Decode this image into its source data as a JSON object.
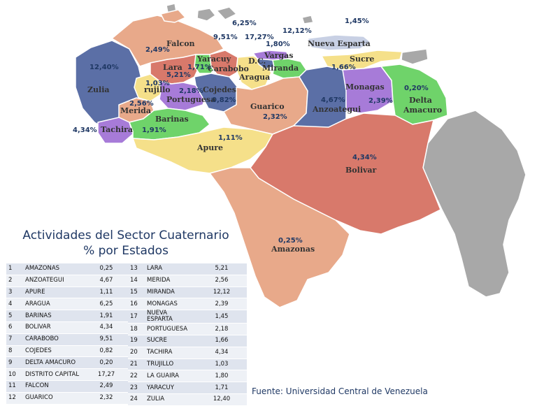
{
  "title_line1": "Actividades del Sector Cuaternario",
  "title_line2": "% por Estados",
  "source": "Fuente: Universidad Central de Venezuela",
  "map": {
    "labels": {
      "zulia": "Zulia",
      "falcon": "Falcon",
      "lara": "Lara",
      "yaracuy": "Yaracuy",
      "carabobo": "Carabobo",
      "dc": "D.C.",
      "vargas": "Vargas",
      "miranda": "Miranda",
      "aragua": "Aragua",
      "nueva_esparta": "Nueva Esparta",
      "sucre": "Sucre",
      "trujillo": "rujillo",
      "portuguesa": "Portuguesa",
      "cojedes": "Cojedes",
      "merida": "Merida",
      "tachira": "Tachira",
      "barinas": "Barinas",
      "apure": "Apure",
      "guarico": "Guarico",
      "anzoategui": "Anzoategui",
      "monagas": "Monagas",
      "delta_amacuro_1": "Delta",
      "delta_amacuro_2": "Amacuro",
      "bolivar": "Bolivar",
      "amazonas": "Amazonas"
    },
    "percents": {
      "zulia": "12,40%",
      "falcon": "2,49%",
      "lara": "5,21%",
      "yaracuy": "1,71%",
      "carabobo": "9,51%",
      "dc": "17,27%",
      "vargas": "1,80%",
      "miranda": "12,12%",
      "aragua": "6,25%",
      "nueva_esparta": "1,45%",
      "sucre": "1,66%",
      "trujillo": "1,03%",
      "portuguesa": "2,18%",
      "cojedes": "0,82%",
      "merida": "2,56%",
      "tachira": "4,34%",
      "barinas": "1,91%",
      "apure": "1,11%",
      "guarico": "2,32%",
      "anzoategui": "4,67%",
      "monagas": "2,39%",
      "delta_amacuro": "0,20%",
      "bolivar": "4,34%",
      "amazonas": "0,25%"
    },
    "colors": {
      "blue": "#5b6fa6",
      "salmon": "#e8a98a",
      "red": "#d8796b",
      "green": "#6fd36a",
      "purple": "#a77bd8",
      "yellow": "#f5e08a",
      "gray": "#a8a8a8",
      "white_text": "#1f3864"
    }
  },
  "table_left": [
    {
      "n": "1",
      "state": "AMAZONAS",
      "value": "0,25"
    },
    {
      "n": "2",
      "state": "ANZOATEGUI",
      "value": "4,67"
    },
    {
      "n": "3",
      "state": "APURE",
      "value": "1,11"
    },
    {
      "n": "4",
      "state": "ARAGUA",
      "value": "6,25"
    },
    {
      "n": "5",
      "state": "BARINAS",
      "value": "1,91"
    },
    {
      "n": "6",
      "state": "BOLIVAR",
      "value": "4,34"
    },
    {
      "n": "7",
      "state": "CARABOBO",
      "value": "9,51"
    },
    {
      "n": "8",
      "state": "COJEDES",
      "value": "0,82"
    },
    {
      "n": "9",
      "state": "DELTA AMACURO",
      "value": "0,20"
    },
    {
      "n": "10",
      "state": "DISTRITO CAPITAL",
      "value": "17,27"
    },
    {
      "n": "11",
      "state": "FALCON",
      "value": "2,49"
    },
    {
      "n": "12",
      "state": "GUARICO",
      "value": "2,32"
    }
  ],
  "table_right": [
    {
      "n": "13",
      "state": "LARA",
      "value": "5,21"
    },
    {
      "n": "14",
      "state": "MERIDA",
      "value": "2,56"
    },
    {
      "n": "15",
      "state": "MIRANDA",
      "value": "12,12"
    },
    {
      "n": "16",
      "state": "MONAGAS",
      "value": "2,39"
    },
    {
      "n": "17",
      "state": "NUEVA ESPARTA",
      "value": "1,45"
    },
    {
      "n": "18",
      "state": "PORTUGUESA",
      "value": "2,18"
    },
    {
      "n": "19",
      "state": "SUCRE",
      "value": "1,66"
    },
    {
      "n": "20",
      "state": "TACHIRA",
      "value": "4,34"
    },
    {
      "n": "21",
      "state": "TRUJILLO",
      "value": "1,03"
    },
    {
      "n": "22",
      "state": "LA GUAIRA",
      "value": "1,80"
    },
    {
      "n": "23",
      "state": "YARACUY",
      "value": "1,71"
    },
    {
      "n": "24",
      "state": "ZULIA",
      "value": "12,40"
    }
  ]
}
